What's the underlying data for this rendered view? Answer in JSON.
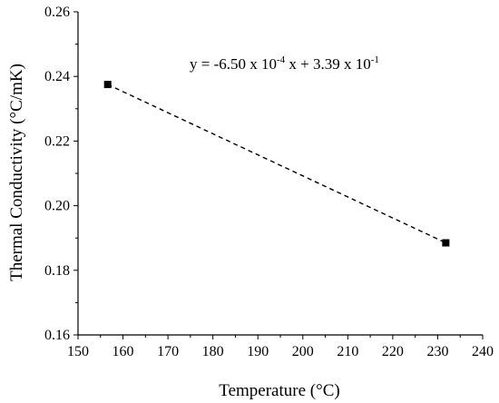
{
  "chart_data": {
    "type": "scatter",
    "title": "",
    "xlabel": "Temperature (°C)",
    "ylabel": "Thermal Conductivity (°C/mK)",
    "xlim": [
      150,
      240
    ],
    "ylim": [
      0.16,
      0.26
    ],
    "xticks": [
      150,
      160,
      170,
      180,
      190,
      200,
      210,
      220,
      230,
      240
    ],
    "yticks": [
      0.16,
      0.18,
      0.2,
      0.22,
      0.24,
      0.26
    ],
    "xtick_labels": [
      "150",
      "160",
      "170",
      "180",
      "190",
      "200",
      "210",
      "220",
      "230",
      "240"
    ],
    "ytick_labels": [
      "0.16",
      "0.18",
      "0.20",
      "0.22",
      "0.24",
      "0.26"
    ],
    "grid": false,
    "series": [
      {
        "x": [
          156.6,
          231.8
        ],
        "y": [
          0.2375,
          0.1885
        ],
        "marker": "square",
        "color": "#000000"
      }
    ],
    "fit_line": {
      "style": "dashed",
      "color": "#000000",
      "x": [
        156.6,
        231.8
      ],
      "y": [
        0.2375,
        0.1885
      ]
    },
    "annotation": {
      "prefix": "y = -6.50 x 10",
      "exp1": "-4",
      "middle": " x + 3.39 x 10",
      "exp2": "-1"
    }
  }
}
